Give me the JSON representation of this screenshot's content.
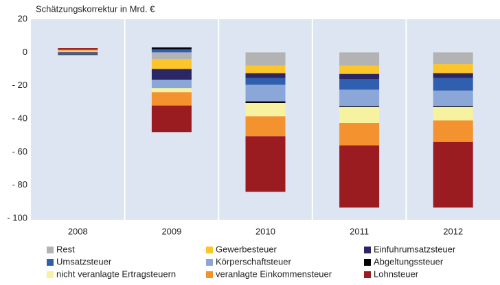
{
  "chart_data": {
    "type": "stacked-bar",
    "title": "Schätzungskorrektur in Mrd. €",
    "categories": [
      "2008",
      "2009",
      "2010",
      "2011",
      "2012"
    ],
    "ylim": [
      -100,
      20
    ],
    "yticks": [
      {
        "value": -100,
        "label": "- 100"
      },
      {
        "value": -80,
        "label": "- 80"
      },
      {
        "value": -60,
        "label": "- 60"
      },
      {
        "value": -40,
        "label": "- 40"
      },
      {
        "value": -20,
        "label": "- 20"
      },
      0,
      20
    ],
    "series": [
      {
        "name": "Rest",
        "color": "#b3b3b3",
        "values": [
          0.3,
          -4,
          -8,
          -8,
          -7
        ]
      },
      {
        "name": "Gewerbesteuer",
        "color": "#fcc52a",
        "values": [
          0.5,
          -6,
          -4.5,
          -5,
          -5.5
        ]
      },
      {
        "name": "Einfuhrumsatzsteuer",
        "color": "#2b2666",
        "values": [
          -0.5,
          -6.5,
          -3,
          -3,
          -3
        ]
      },
      {
        "name": "Umsatzsteuer",
        "color": "#2f5fae",
        "values": [
          -0.5,
          2,
          -4,
          -6.5,
          -7.5
        ]
      },
      {
        "name": "Körperschaftsteuer",
        "color": "#8aa7d8",
        "values": [
          -0.3,
          -5,
          -10,
          -10,
          -9.5
        ]
      },
      {
        "name": "Abgeltungssteuer",
        "color": "#000000",
        "values": [
          -0.3,
          1,
          -1,
          -0.5,
          -0.5
        ]
      },
      {
        "name": "nicht veranlagte Ertragsteuern",
        "color": "#f7f2a0",
        "values": [
          0.3,
          -2.5,
          -8,
          -9.5,
          -8
        ]
      },
      {
        "name": "veranlagte Einkommensteuer",
        "color": "#f3922f",
        "values": [
          0.5,
          -8,
          -12,
          -13.5,
          -13
        ]
      },
      {
        "name": "Lohnsteuer",
        "color": "#9b1c20",
        "values": [
          1,
          -16,
          -33.5,
          -37.5,
          -39.5
        ]
      }
    ]
  }
}
